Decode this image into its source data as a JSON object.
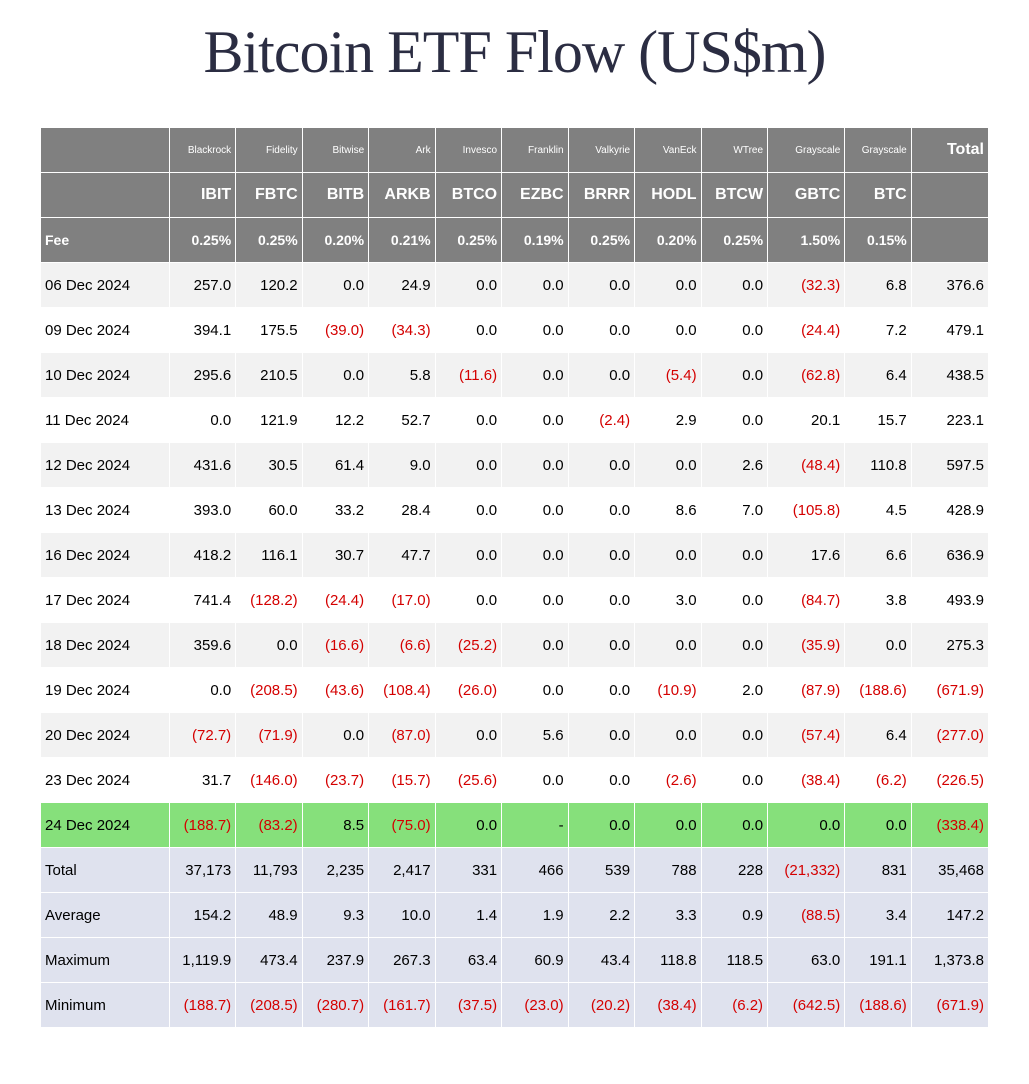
{
  "title": "Bitcoin ETF Flow (US$m)",
  "colors": {
    "header_bg": "#808080",
    "header_fg": "#ffffff",
    "stripe_even": "#f2f2f2",
    "stripe_odd": "#ffffff",
    "highlight_green": "#86e07b",
    "summary_bg": "#dfe2ee",
    "negative": "#d40000",
    "text": "#000000",
    "title_color": "#2b2d42"
  },
  "columns": [
    {
      "issuer": "Blackrock",
      "ticker": "IBIT",
      "fee": "0.25%",
      "class": "col-data"
    },
    {
      "issuer": "Fidelity",
      "ticker": "FBTC",
      "fee": "0.25%",
      "class": "col-data"
    },
    {
      "issuer": "Bitwise",
      "ticker": "BITB",
      "fee": "0.20%",
      "class": "col-data"
    },
    {
      "issuer": "Ark",
      "ticker": "ARKB",
      "fee": "0.21%",
      "class": "col-data"
    },
    {
      "issuer": "Invesco",
      "ticker": "BTCO",
      "fee": "0.25%",
      "class": "col-data"
    },
    {
      "issuer": "Franklin",
      "ticker": "EZBC",
      "fee": "0.19%",
      "class": "col-data"
    },
    {
      "issuer": "Valkyrie",
      "ticker": "BRRR",
      "fee": "0.25%",
      "class": "col-data"
    },
    {
      "issuer": "VanEck",
      "ticker": "HODL",
      "fee": "0.20%",
      "class": "col-data"
    },
    {
      "issuer": "WTree",
      "ticker": "BTCW",
      "fee": "0.25%",
      "class": "col-data"
    },
    {
      "issuer": "Grayscale",
      "ticker": "GBTC",
      "fee": "1.50%",
      "class": "col-gbtc"
    },
    {
      "issuer": "Grayscale",
      "ticker": "BTC",
      "fee": "0.15%",
      "class": "col-data"
    }
  ],
  "total_label": "Total",
  "fee_label": "Fee",
  "rows": [
    {
      "date": "06 Dec 2024",
      "style": "stripe-even",
      "cells": [
        "257.0",
        "120.2",
        "0.0",
        "24.9",
        "0.0",
        "0.0",
        "0.0",
        "0.0",
        "0.0",
        "(32.3)",
        "6.8",
        "376.6"
      ]
    },
    {
      "date": "09 Dec 2024",
      "style": "stripe-odd",
      "cells": [
        "394.1",
        "175.5",
        "(39.0)",
        "(34.3)",
        "0.0",
        "0.0",
        "0.0",
        "0.0",
        "0.0",
        "(24.4)",
        "7.2",
        "479.1"
      ]
    },
    {
      "date": "10 Dec 2024",
      "style": "stripe-even",
      "cells": [
        "295.6",
        "210.5",
        "0.0",
        "5.8",
        "(11.6)",
        "0.0",
        "0.0",
        "(5.4)",
        "0.0",
        "(62.8)",
        "6.4",
        "438.5"
      ]
    },
    {
      "date": "11 Dec 2024",
      "style": "stripe-odd",
      "cells": [
        "0.0",
        "121.9",
        "12.2",
        "52.7",
        "0.0",
        "0.0",
        "(2.4)",
        "2.9",
        "0.0",
        "20.1",
        "15.7",
        "223.1"
      ]
    },
    {
      "date": "12 Dec 2024",
      "style": "stripe-even",
      "cells": [
        "431.6",
        "30.5",
        "61.4",
        "9.0",
        "0.0",
        "0.0",
        "0.0",
        "0.0",
        "2.6",
        "(48.4)",
        "110.8",
        "597.5"
      ]
    },
    {
      "date": "13 Dec 2024",
      "style": "stripe-odd",
      "cells": [
        "393.0",
        "60.0",
        "33.2",
        "28.4",
        "0.0",
        "0.0",
        "0.0",
        "8.6",
        "7.0",
        "(105.8)",
        "4.5",
        "428.9"
      ]
    },
    {
      "date": "16 Dec 2024",
      "style": "stripe-even",
      "cells": [
        "418.2",
        "116.1",
        "30.7",
        "47.7",
        "0.0",
        "0.0",
        "0.0",
        "0.0",
        "0.0",
        "17.6",
        "6.6",
        "636.9"
      ]
    },
    {
      "date": "17 Dec 2024",
      "style": "stripe-odd",
      "cells": [
        "741.4",
        "(128.2)",
        "(24.4)",
        "(17.0)",
        "0.0",
        "0.0",
        "0.0",
        "3.0",
        "0.0",
        "(84.7)",
        "3.8",
        "493.9"
      ]
    },
    {
      "date": "18 Dec 2024",
      "style": "stripe-even",
      "cells": [
        "359.6",
        "0.0",
        "(16.6)",
        "(6.6)",
        "(25.2)",
        "0.0",
        "0.0",
        "0.0",
        "0.0",
        "(35.9)",
        "0.0",
        "275.3"
      ]
    },
    {
      "date": "19 Dec 2024",
      "style": "stripe-odd",
      "cells": [
        "0.0",
        "(208.5)",
        "(43.6)",
        "(108.4)",
        "(26.0)",
        "0.0",
        "0.0",
        "(10.9)",
        "2.0",
        "(87.9)",
        "(188.6)",
        "(671.9)"
      ]
    },
    {
      "date": "20 Dec 2024",
      "style": "stripe-even",
      "cells": [
        "(72.7)",
        "(71.9)",
        "0.0",
        "(87.0)",
        "0.0",
        "5.6",
        "0.0",
        "0.0",
        "0.0",
        "(57.4)",
        "6.4",
        "(277.0)"
      ]
    },
    {
      "date": "23 Dec 2024",
      "style": "stripe-odd",
      "cells": [
        "31.7",
        "(146.0)",
        "(23.7)",
        "(15.7)",
        "(25.6)",
        "0.0",
        "0.0",
        "(2.6)",
        "0.0",
        "(38.4)",
        "(6.2)",
        "(226.5)"
      ]
    },
    {
      "date": "24 Dec 2024",
      "style": "hl-green",
      "cells": [
        "(188.7)",
        "(83.2)",
        "8.5",
        "(75.0)",
        "0.0",
        "-",
        "0.0",
        "0.0",
        "0.0",
        "0.0",
        "0.0",
        "(338.4)"
      ]
    }
  ],
  "summary": [
    {
      "label": "Total",
      "cells": [
        "37,173",
        "11,793",
        "2,235",
        "2,417",
        "331",
        "466",
        "539",
        "788",
        "228",
        "(21,332)",
        "831",
        "35,468"
      ]
    },
    {
      "label": "Average",
      "cells": [
        "154.2",
        "48.9",
        "9.3",
        "10.0",
        "1.4",
        "1.9",
        "2.2",
        "3.3",
        "0.9",
        "(88.5)",
        "3.4",
        "147.2"
      ]
    },
    {
      "label": "Maximum",
      "cells": [
        "1,119.9",
        "473.4",
        "237.9",
        "267.3",
        "63.4",
        "60.9",
        "43.4",
        "118.8",
        "118.5",
        "63.0",
        "191.1",
        "1,373.8"
      ]
    },
    {
      "label": "Minimum",
      "cells": [
        "(188.7)",
        "(208.5)",
        "(280.7)",
        "(161.7)",
        "(37.5)",
        "(23.0)",
        "(20.2)",
        "(38.4)",
        "(6.2)",
        "(642.5)",
        "(188.6)",
        "(671.9)"
      ]
    }
  ]
}
